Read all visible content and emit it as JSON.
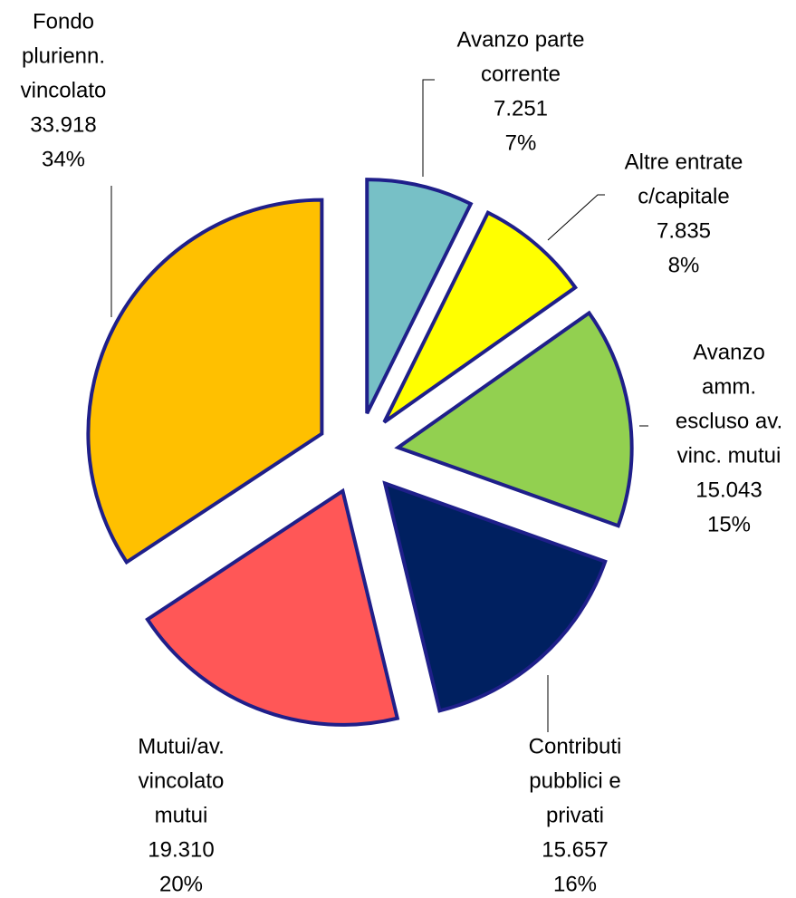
{
  "chart_data": {
    "type": "pie",
    "categories": [
      [
        "Avanzo parte",
        "corrente"
      ],
      [
        "Altre entrate",
        "c/capitale"
      ],
      [
        "Avanzo",
        "amm.",
        "escluso av.",
        "vinc. mutui"
      ],
      [
        "Contributi",
        "pubblici e",
        "privati"
      ],
      [
        "Mutui/av.",
        "vincolato",
        "mutui"
      ],
      [
        "Fondo",
        "plurienn.",
        "vincolato"
      ]
    ],
    "values": [
      7251,
      7835,
      15043,
      15657,
      19310,
      33918
    ],
    "value_labels": [
      "7.251",
      "7.835",
      "15.043",
      "15.657",
      "19.310",
      "33.918"
    ],
    "percent_labels": [
      "7%",
      "8%",
      "15%",
      "16%",
      "20%",
      "34%"
    ],
    "colors": [
      "#77c0c6",
      "#ffff00",
      "#92d050",
      "#002060",
      "#ff5757",
      "#ffc000"
    ],
    "edge_color": "#1f1f8a"
  }
}
